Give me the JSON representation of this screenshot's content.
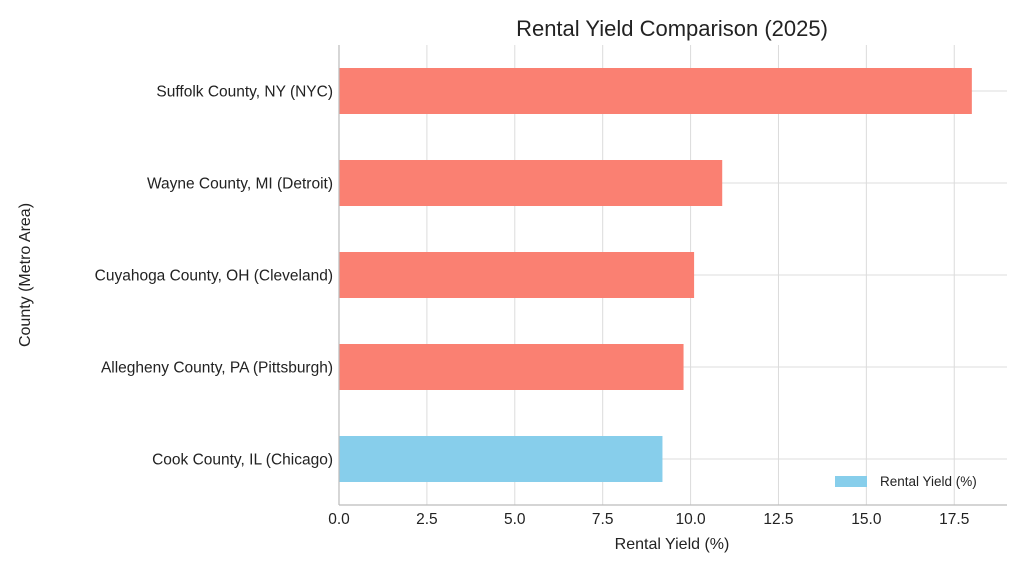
{
  "chart_data": {
    "type": "bar",
    "orientation": "horizontal",
    "title": "Rental Yield Comparison (2025)",
    "xlabel": "Rental Yield (%)",
    "ylabel": "County (Metro Area)",
    "categories": [
      "Cook County, IL (Chicago)",
      "Allegheny County, PA (Pittsburgh)",
      "Cuyahoga County, OH (Cleveland)",
      "Wayne County, MI (Detroit)",
      "Suffolk County, NY (NYC)"
    ],
    "series": [
      {
        "name": "Rental Yield (%)",
        "values": [
          9.2,
          9.8,
          10.1,
          10.9,
          18.0
        ]
      }
    ],
    "bar_colors": [
      "#87ceeb",
      "#fa8072",
      "#fa8072",
      "#fa8072",
      "#fa8072"
    ],
    "xlim": [
      0,
      19
    ],
    "xticks": [
      0,
      2.5,
      5,
      7.5,
      10,
      12.5,
      15,
      17.5
    ],
    "xtick_labels": [
      "0.0",
      "2.5",
      "5.0",
      "7.5",
      "10.0",
      "12.5",
      "15.0",
      "17.5"
    ],
    "grid": true,
    "legend": {
      "position": "lower-right",
      "entries": [
        {
          "label": "Rental Yield (%)",
          "color": "#87ceeb"
        }
      ]
    }
  }
}
